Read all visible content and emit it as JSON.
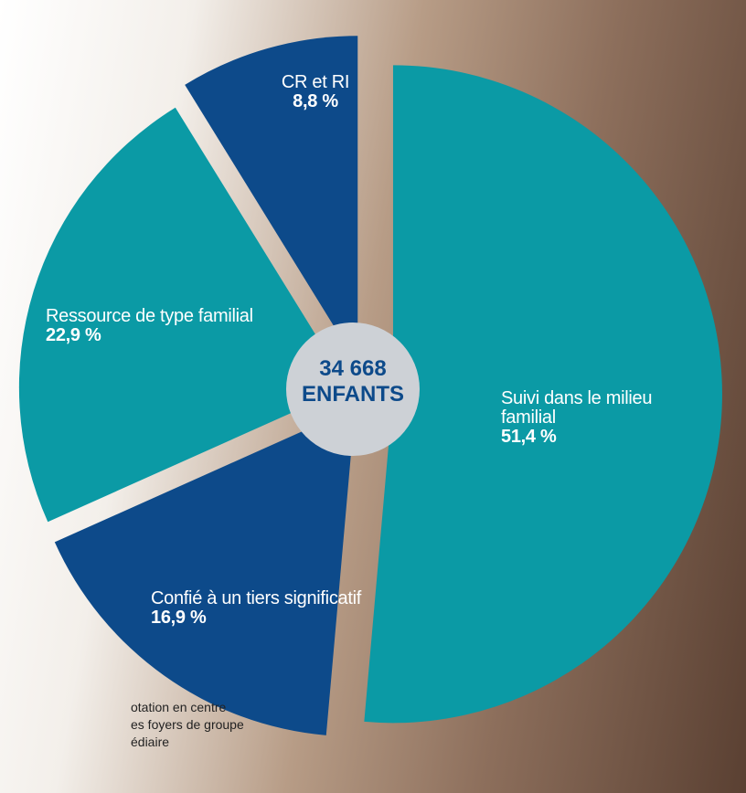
{
  "chart_data": {
    "type": "pie",
    "categories": [
      "Suivi dans le milieu familial",
      "Confié à un tiers significatif",
      "Ressource de type familial",
      "CR et RI"
    ],
    "values": [
      51.4,
      16.9,
      22.9,
      8.8
    ],
    "value_labels": [
      "51,4 %",
      "16,9 %",
      "22,9 %",
      "8,8 %"
    ],
    "colors": [
      "#0b9aa5",
      "#0d4a8a",
      "#0b9aa5",
      "#0d4a8a"
    ],
    "center_text": [
      "34 668",
      "ENFANTS"
    ],
    "footnote_lines": [
      "otation en centre",
      "es foyers de groupe",
      "édiaire"
    ]
  }
}
